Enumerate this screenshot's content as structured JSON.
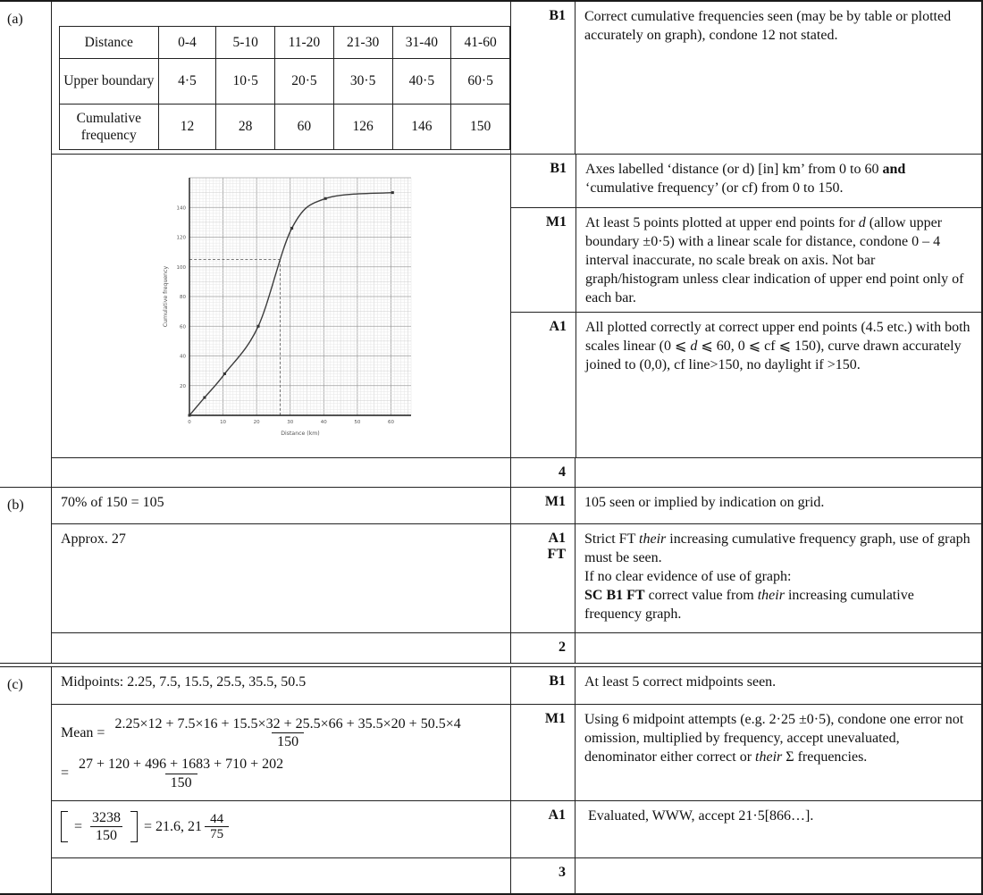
{
  "a": {
    "label": "(a)",
    "table": {
      "rows": [
        {
          "header": "Distance",
          "cells": [
            "0-4",
            "5-10",
            "11-20",
            "21-30",
            "31-40",
            "41-60"
          ]
        },
        {
          "header": "Upper boundary",
          "cells": [
            "4·5",
            "10·5",
            "20·5",
            "30·5",
            "40·5",
            "60·5"
          ]
        },
        {
          "header": "Cumulative frequency",
          "cells": [
            "12",
            "28",
            "60",
            "126",
            "146",
            "150"
          ]
        }
      ]
    },
    "table_mark": "B1",
    "table_note": [
      {
        "t": "Correct cumulative frequencies seen (may be by table or plotted accurately on graph), condone 12 not stated."
      }
    ],
    "graph_rows": [
      {
        "mark": "B1",
        "note": [
          {
            "t": "Axes labelled ‘distance (or d) [in] km’ from 0 to 60 "
          },
          {
            "t": "and",
            "b": true
          },
          {
            "t": " ‘cumulative frequency’ (or cf) from 0 to 150."
          }
        ]
      },
      {
        "mark": "M1",
        "note": [
          {
            "t": "At least 5 points plotted at upper end points for "
          },
          {
            "t": "d",
            "i": true
          },
          {
            "t": " (allow upper boundary ±0·5) with a linear scale for distance, condone 0 – 4 interval inaccurate, no scale break on axis. Not bar graph/histogram unless clear indication of upper end point only of each bar."
          }
        ]
      },
      {
        "mark": "A1",
        "note": [
          {
            "t": "All plotted correctly at correct upper end points (4.5 etc.) with both scales linear (0 ⩽ "
          },
          {
            "t": "d",
            "i": true
          },
          {
            "t": " ⩽ 60, 0 ⩽ cf ⩽ 150), curve drawn accurately joined to (0,0), cf line>150, no daylight if >150."
          }
        ]
      }
    ],
    "total": "4"
  },
  "b": {
    "label": "(b)",
    "rows": [
      {
        "answer": "70% of 150 = 105",
        "mark": "M1",
        "note": [
          {
            "t": "105 seen or implied by indication on grid."
          }
        ]
      },
      {
        "answer": "Approx. 27",
        "mark": "A1\nFT",
        "note": [
          {
            "t": "Strict FT "
          },
          {
            "t": "their",
            "i": true
          },
          {
            "t": " increasing cumulative frequency graph, use of graph must be seen.\nIf no clear evidence of use of graph:\n"
          },
          {
            "t": "SC B1 FT",
            "b": true
          },
          {
            "t": " correct value from "
          },
          {
            "t": "their",
            "i": true
          },
          {
            "t": " increasing cumulative frequency graph."
          }
        ]
      }
    ],
    "total": "2"
  },
  "c": {
    "label": "(c)",
    "midpoints": {
      "answer": "Midpoints: 2.25, 7.5, 15.5, 25.5, 35.5, 50.5",
      "mark": "B1",
      "note": [
        {
          "t": "At least 5 correct midpoints seen."
        }
      ]
    },
    "mean": {
      "mark": "M1",
      "lhs": "Mean =",
      "num1": "2.25×12 + 7.5×16 + 15.5×32 + 25.5×66 + 35.5×20 + 50.5×4",
      "den1": "150",
      "lhs2": "=",
      "num2": "27 + 120 + 496 + 1683 + 710 + 202",
      "den2": "150",
      "note": [
        {
          "t": "Using 6 midpoint attempts (e.g. 2·25 ±0·5), condone one error not omission, multiplied by frequency, accept unevaluated, denominator either correct or "
        },
        {
          "t": "their",
          "i": true
        },
        {
          "t": " Σ frequencies."
        }
      ]
    },
    "result": {
      "mark": "A1",
      "pre": "=",
      "num": "3238",
      "den": "150",
      "mid": "= 21.6, 21",
      "fn": "44",
      "fd": "75",
      "note": [
        {
          "t": "Evaluated, WWW, accept 21·5[866…]."
        }
      ]
    },
    "total": "3"
  },
  "chart_data": {
    "type": "line",
    "title": "",
    "xlabel": "Distance (km)",
    "ylabel": "Cumulative frequency",
    "x_ticks": [
      0,
      10,
      20,
      30,
      40,
      50,
      60
    ],
    "y_ticks": [
      20,
      40,
      60,
      80,
      100,
      120,
      140
    ],
    "xlim": [
      0,
      66
    ],
    "ylim": [
      0,
      160
    ],
    "points": [
      [
        0,
        0
      ],
      [
        4.5,
        12
      ],
      [
        10.5,
        28
      ],
      [
        20.5,
        60
      ],
      [
        30.5,
        126
      ],
      [
        40.5,
        146
      ],
      [
        60.5,
        150
      ]
    ],
    "guide": {
      "cf": 105,
      "km": 27
    },
    "grid": "fine graph paper",
    "legend": "none"
  }
}
